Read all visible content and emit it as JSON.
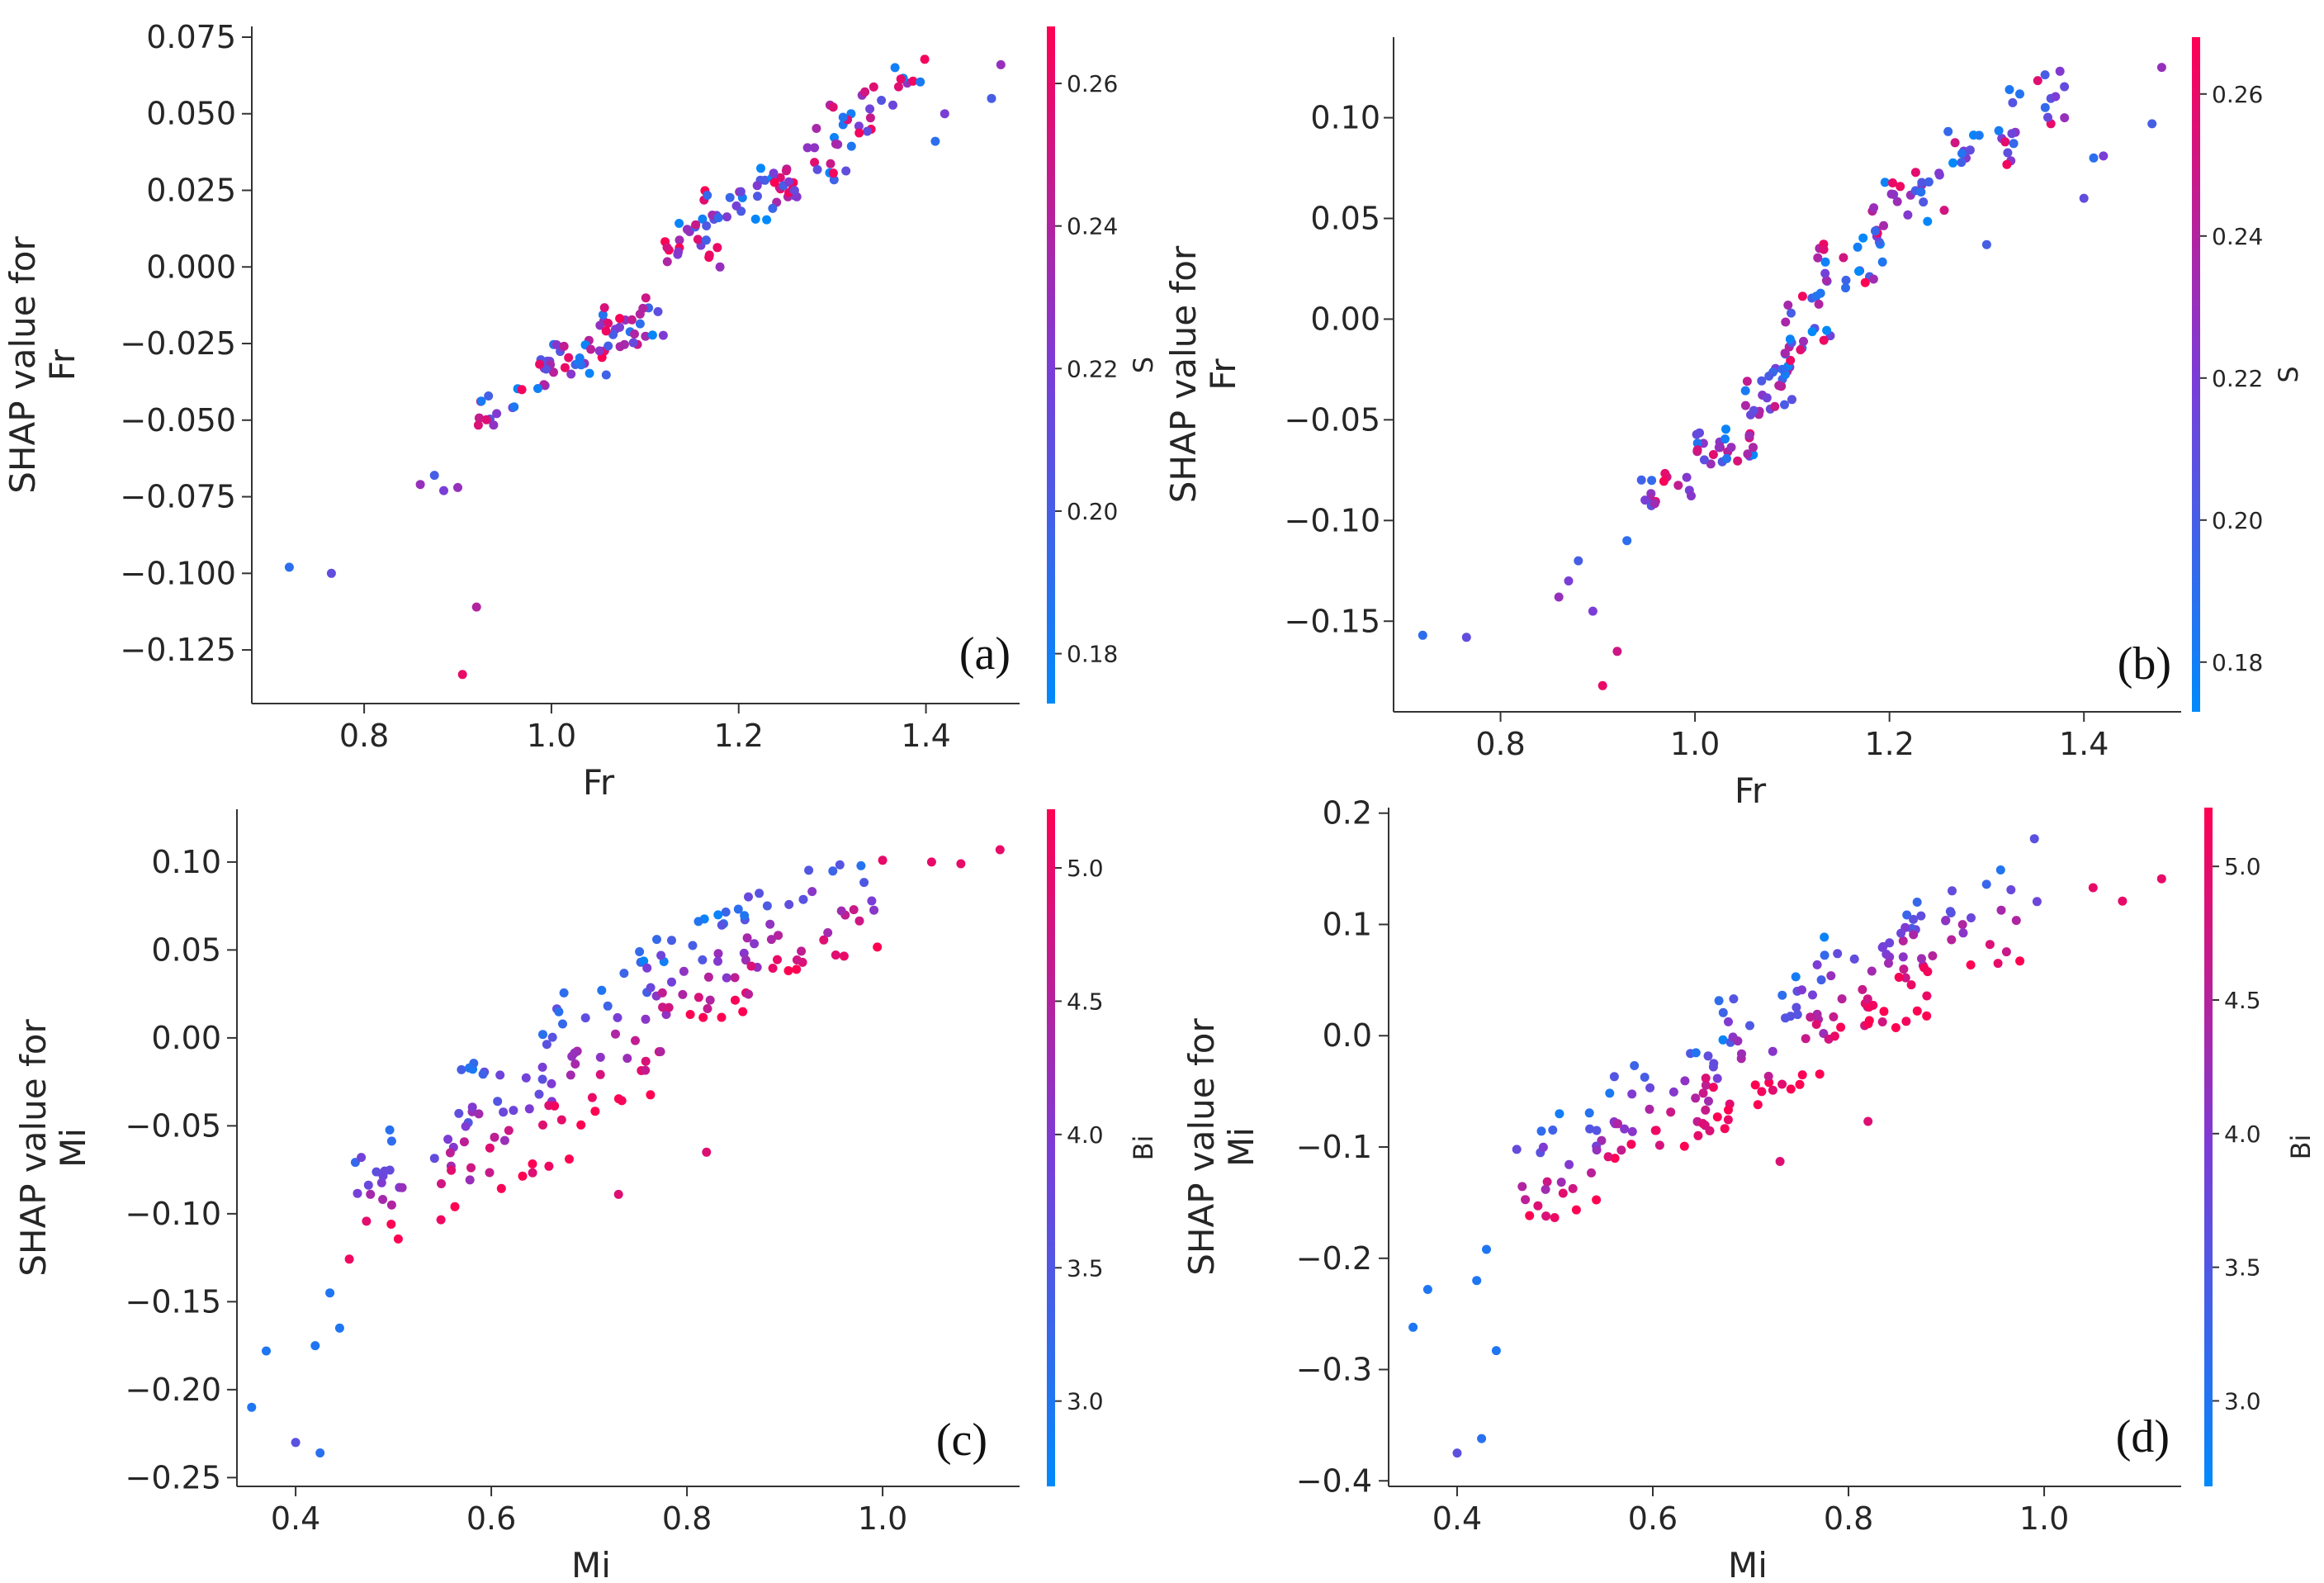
{
  "colors": {
    "low": "#008afb",
    "mid": "#7c3cd6",
    "high": "#ff0052"
  },
  "chart_data": [
    {
      "type": "scatter",
      "panel_label": "(a)",
      "xlabel": "Fr",
      "ylabel_line1": "SHAP value for",
      "ylabel_line2": "Fr",
      "xlim": [
        0.68,
        1.5
      ],
      "ylim": [
        -0.1425,
        0.0785
      ],
      "xticks": [
        0.8,
        1.0,
        1.2,
        1.4
      ],
      "xtick_labels": [
        "0.8",
        "1.0",
        "1.2",
        "1.4"
      ],
      "yticks": [
        0.075,
        0.05,
        0.025,
        0.0,
        -0.025,
        -0.05,
        -0.075,
        -0.1,
        -0.125
      ],
      "ytick_labels": [
        "0.075",
        "0.050",
        "0.025",
        "0.000",
        "−0.025",
        "−0.050",
        "−0.075",
        "−0.100",
        "−0.125"
      ],
      "colorbar": {
        "label": "S",
        "range": [
          0.173,
          0.268
        ],
        "ticks": [
          0.26,
          0.24,
          0.22,
          0.2,
          0.18
        ],
        "tick_labels": [
          "0.26",
          "0.24",
          "0.22",
          "0.20",
          "0.18"
        ]
      },
      "seed": 11,
      "anchors": [
        [
          0.72,
          -0.098,
          0.19
        ],
        [
          0.765,
          -0.1,
          0.21
        ],
        [
          0.86,
          -0.071,
          0.23
        ],
        [
          0.875,
          -0.068,
          0.2
        ],
        [
          0.885,
          -0.073,
          0.22
        ],
        [
          0.9,
          -0.072,
          0.23
        ],
        [
          0.905,
          -0.133,
          0.26
        ],
        [
          0.92,
          -0.111,
          0.24
        ],
        [
          1.18,
          0.0,
          0.23
        ],
        [
          1.32,
          0.05,
          0.18
        ],
        [
          1.38,
          0.06,
          0.23
        ],
        [
          1.41,
          0.041,
          0.19
        ],
        [
          1.42,
          0.05,
          0.22
        ],
        [
          1.47,
          0.055,
          0.2
        ],
        [
          1.48,
          0.066,
          0.23
        ]
      ],
      "clusters": [
        {
          "x": [
            0.92,
            0.98
          ],
          "y": [
            -0.055,
            -0.035
          ],
          "n": 14
        },
        {
          "x": [
            0.98,
            1.06
          ],
          "y": [
            -0.04,
            -0.022
          ],
          "n": 30
        },
        {
          "x": [
            1.05,
            1.12
          ],
          "y": [
            -0.03,
            -0.008
          ],
          "n": 30
        },
        {
          "x": [
            1.12,
            1.18
          ],
          "y": [
            -0.002,
            0.018
          ],
          "n": 22
        },
        {
          "x": [
            1.16,
            1.26
          ],
          "y": [
            0.01,
            0.032
          ],
          "n": 28
        },
        {
          "x": [
            1.22,
            1.32
          ],
          "y": [
            0.02,
            0.042
          ],
          "n": 20
        },
        {
          "x": [
            1.28,
            1.36
          ],
          "y": [
            0.035,
            0.058
          ],
          "n": 16
        },
        {
          "x": [
            1.33,
            1.4
          ],
          "y": [
            0.05,
            0.068
          ],
          "n": 12
        }
      ]
    },
    {
      "type": "scatter",
      "panel_label": "(b)",
      "xlabel": "Fr",
      "ylabel_line1": "SHAP value for",
      "ylabel_line2": "Fr",
      "xlim": [
        0.69,
        1.5
      ],
      "ylim": [
        -0.195,
        0.14
      ],
      "xticks": [
        0.8,
        1.0,
        1.2,
        1.4
      ],
      "xtick_labels": [
        "0.8",
        "1.0",
        "1.2",
        "1.4"
      ],
      "yticks": [
        0.1,
        0.05,
        0.0,
        -0.05,
        -0.1,
        -0.15
      ],
      "ytick_labels": [
        "0.10",
        "0.05",
        "0.00",
        "−0.05",
        "−0.10",
        "−0.15"
      ],
      "colorbar": {
        "label": "S",
        "range": [
          0.173,
          0.268
        ],
        "ticks": [
          0.26,
          0.24,
          0.22,
          0.2,
          0.18
        ],
        "tick_labels": [
          "0.26",
          "0.24",
          "0.22",
          "0.20",
          "0.18"
        ]
      },
      "seed": 23,
      "anchors": [
        [
          0.72,
          -0.157,
          0.19
        ],
        [
          0.765,
          -0.158,
          0.21
        ],
        [
          0.86,
          -0.138,
          0.23
        ],
        [
          0.87,
          -0.13,
          0.22
        ],
        [
          0.88,
          -0.12,
          0.2
        ],
        [
          0.895,
          -0.145,
          0.22
        ],
        [
          0.905,
          -0.182,
          0.26
        ],
        [
          0.92,
          -0.165,
          0.25
        ],
        [
          0.93,
          -0.11,
          0.19
        ],
        [
          1.3,
          0.037,
          0.2
        ],
        [
          1.38,
          0.1,
          0.23
        ],
        [
          1.4,
          0.06,
          0.21
        ],
        [
          1.41,
          0.08,
          0.19
        ],
        [
          1.42,
          0.081,
          0.22
        ],
        [
          1.47,
          0.097,
          0.2
        ],
        [
          1.48,
          0.125,
          0.23
        ]
      ],
      "clusters": [
        {
          "x": [
            0.94,
            1.0
          ],
          "y": [
            -0.095,
            -0.07
          ],
          "n": 16
        },
        {
          "x": [
            1.0,
            1.06
          ],
          "y": [
            -0.075,
            -0.05
          ],
          "n": 26
        },
        {
          "x": [
            1.05,
            1.1
          ],
          "y": [
            -0.05,
            -0.02
          ],
          "n": 26
        },
        {
          "x": [
            1.09,
            1.14
          ],
          "y": [
            -0.02,
            0.02
          ],
          "n": 22
        },
        {
          "x": [
            1.12,
            1.2
          ],
          "y": [
            0.01,
            0.05
          ],
          "n": 22
        },
        {
          "x": [
            1.18,
            1.27
          ],
          "y": [
            0.04,
            0.08
          ],
          "n": 24
        },
        {
          "x": [
            1.25,
            1.34
          ],
          "y": [
            0.07,
            0.1
          ],
          "n": 20
        },
        {
          "x": [
            1.32,
            1.38
          ],
          "y": [
            0.09,
            0.125
          ],
          "n": 12
        }
      ]
    },
    {
      "type": "scatter",
      "panel_label": "(c)",
      "xlabel": "Mi",
      "ylabel_line1": "SHAP value for",
      "ylabel_line2": "Mi",
      "xlim": [
        0.34,
        1.14
      ],
      "ylim": [
        -0.255,
        0.13
      ],
      "xticks": [
        0.4,
        0.6,
        0.8,
        1.0
      ],
      "xtick_labels": [
        "0.4",
        "0.6",
        "0.8",
        "1.0"
      ],
      "yticks": [
        0.1,
        0.05,
        0.0,
        -0.05,
        -0.1,
        -0.15,
        -0.2,
        -0.25
      ],
      "ytick_labels": [
        "0.10",
        "0.05",
        "0.00",
        "−0.05",
        "−0.10",
        "−0.15",
        "−0.20",
        "−0.25"
      ],
      "colorbar": {
        "label": "Bi",
        "range": [
          2.68,
          5.22
        ],
        "ticks": [
          5.0,
          4.5,
          4.0,
          3.5,
          3.0
        ],
        "tick_labels": [
          "5.0",
          "4.5",
          "4.0",
          "3.5",
          "3.0"
        ]
      },
      "seed": 37,
      "anchors": [
        [
          0.355,
          -0.21,
          3.0
        ],
        [
          0.37,
          -0.178,
          3.0
        ],
        [
          0.4,
          -0.23,
          3.6
        ],
        [
          0.42,
          -0.175,
          3.0
        ],
        [
          0.425,
          -0.236,
          3.1
        ],
        [
          0.435,
          -0.145,
          3.0
        ],
        [
          0.445,
          -0.165,
          3.0
        ],
        [
          0.82,
          -0.065,
          4.9
        ],
        [
          0.73,
          -0.089,
          4.9
        ],
        [
          1.05,
          0.1,
          5.0
        ],
        [
          1.08,
          0.099,
          5.0
        ],
        [
          1.12,
          0.107,
          5.0
        ],
        [
          1.0,
          0.101,
          5.0
        ]
      ],
      "clusters": [
        {
          "x": [
            0.45,
            0.58
          ],
          "y": [
            -0.13,
            -0.03
          ],
          "n": 30
        },
        {
          "x": [
            0.55,
            0.68
          ],
          "y": [
            -0.1,
            0.01
          ],
          "n": 38
        },
        {
          "x": [
            0.65,
            0.78
          ],
          "y": [
            -0.06,
            0.05
          ],
          "n": 42
        },
        {
          "x": [
            0.75,
            0.88
          ],
          "y": [
            -0.01,
            0.08
          ],
          "n": 42
        },
        {
          "x": [
            0.85,
            1.0
          ],
          "y": [
            0.03,
            0.11
          ],
          "n": 34
        }
      ]
    },
    {
      "type": "scatter",
      "panel_label": "(d)",
      "xlabel": "Mi",
      "ylabel_line1": "SHAP value for",
      "ylabel_line2": "Mi",
      "xlim": [
        0.33,
        1.14
      ],
      "ylim": [
        -0.405,
        0.205
      ],
      "xticks": [
        0.4,
        0.6,
        0.8,
        1.0
      ],
      "xtick_labels": [
        "0.4",
        "0.6",
        "0.8",
        "1.0"
      ],
      "yticks": [
        0.2,
        0.1,
        0.0,
        -0.1,
        -0.2,
        -0.3,
        -0.4
      ],
      "ytick_labels": [
        "0.2",
        "0.1",
        "0.0",
        "−0.1",
        "−0.2",
        "−0.3",
        "−0.4"
      ],
      "colorbar": {
        "label": "Bi",
        "range": [
          2.68,
          5.22
        ],
        "ticks": [
          5.0,
          4.5,
          4.0,
          3.5,
          3.0
        ],
        "tick_labels": [
          "5.0",
          "4.5",
          "4.0",
          "3.5",
          "3.0"
        ]
      },
      "seed": 53,
      "anchors": [
        [
          0.355,
          -0.262,
          3.0
        ],
        [
          0.37,
          -0.228,
          3.0
        ],
        [
          0.4,
          -0.375,
          3.6
        ],
        [
          0.42,
          -0.22,
          3.0
        ],
        [
          0.425,
          -0.362,
          3.1
        ],
        [
          0.43,
          -0.192,
          3.0
        ],
        [
          0.44,
          -0.283,
          3.0
        ],
        [
          0.82,
          -0.077,
          4.9
        ],
        [
          0.73,
          -0.113,
          4.9
        ],
        [
          1.05,
          0.133,
          5.0
        ],
        [
          1.08,
          0.121,
          5.0
        ],
        [
          1.12,
          0.141,
          5.0
        ],
        [
          0.99,
          0.177,
          3.6
        ]
      ],
      "clusters": [
        {
          "x": [
            0.46,
            0.58
          ],
          "y": [
            -0.18,
            -0.04
          ],
          "n": 30
        },
        {
          "x": [
            0.55,
            0.68
          ],
          "y": [
            -0.12,
            0.0
          ],
          "n": 38
        },
        {
          "x": [
            0.65,
            0.78
          ],
          "y": [
            -0.08,
            0.07
          ],
          "n": 42
        },
        {
          "x": [
            0.75,
            0.88
          ],
          "y": [
            -0.02,
            0.12
          ],
          "n": 42
        },
        {
          "x": [
            0.85,
            1.0
          ],
          "y": [
            0.04,
            0.16
          ],
          "n": 34
        }
      ]
    }
  ]
}
